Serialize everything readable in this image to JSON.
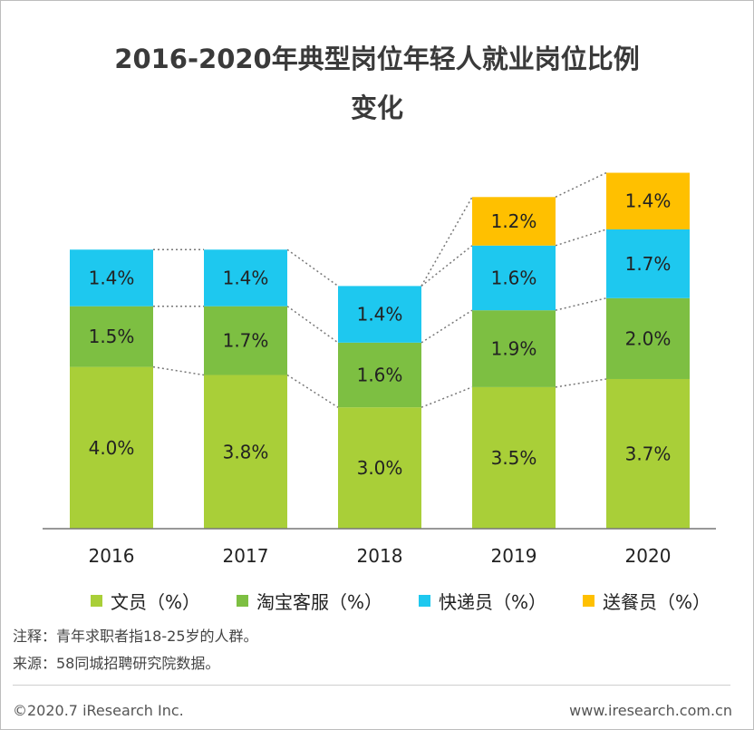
{
  "title_line1": "2016-2020年典型岗位年轻人就业岗位比例",
  "title_line2": "变化",
  "chart_data": {
    "type": "bar",
    "stacked": true,
    "title": "2016-2020年典型岗位年轻人就业岗位比例变化",
    "categories": [
      "2016",
      "2017",
      "2018",
      "2019",
      "2020"
    ],
    "series": [
      {
        "name": "文员（%）",
        "color": "#a9cf38",
        "values": [
          4.0,
          3.8,
          3.0,
          3.5,
          3.7
        ],
        "labels": [
          "4.0%",
          "3.8%",
          "3.0%",
          "3.5%",
          "3.7%"
        ]
      },
      {
        "name": "淘宝客服（%）",
        "color": "#7dbf42",
        "values": [
          1.5,
          1.7,
          1.6,
          1.9,
          2.0
        ],
        "labels": [
          "1.5%",
          "1.7%",
          "1.6%",
          "1.9%",
          "2.0%"
        ]
      },
      {
        "name": "快递员（%）",
        "color": "#1ec8ef",
        "values": [
          1.4,
          1.4,
          1.4,
          1.6,
          1.7
        ],
        "labels": [
          "1.4%",
          "1.4%",
          "1.4%",
          "1.6%",
          "1.7%"
        ]
      },
      {
        "name": "送餐员（%）",
        "color": "#ffc000",
        "values": [
          null,
          null,
          null,
          1.2,
          1.4
        ],
        "labels": [
          "",
          "",
          "",
          "1.2%",
          "1.4%"
        ]
      }
    ],
    "xlabel": "",
    "ylabel": ""
  },
  "note": "注释：青年求职者指18-25岁的人群。",
  "source": "来源：58同城招聘研究院数据。",
  "copyright": "©2020.7 iResearch Inc.",
  "website": "www.iresearch.com.cn"
}
